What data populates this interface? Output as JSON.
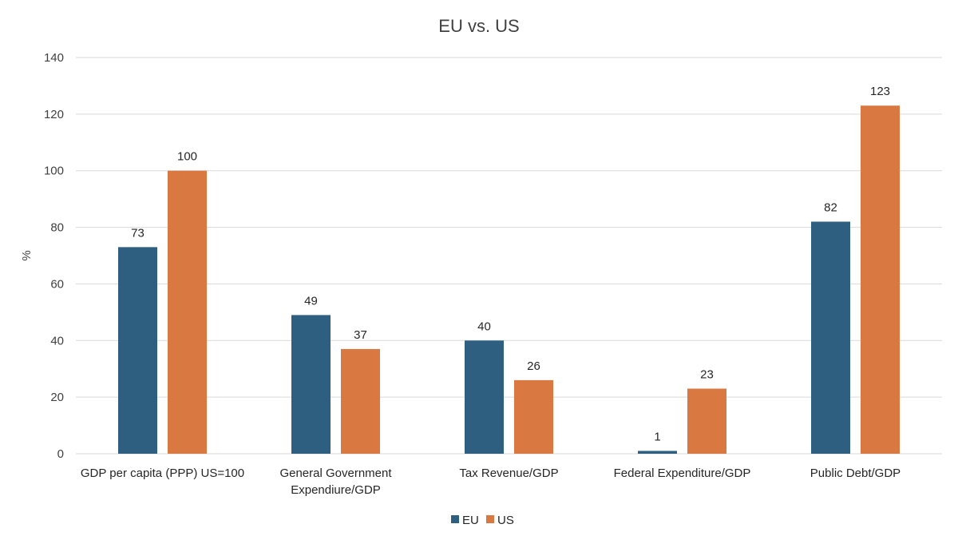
{
  "chart_data": {
    "type": "bar",
    "title": "EU vs. US",
    "xlabel": "",
    "ylabel": "%",
    "ylim": [
      0,
      140
    ],
    "yticks": [
      0,
      20,
      40,
      60,
      80,
      100,
      120,
      140
    ],
    "categories": [
      [
        "GDP per capita (PPP) US=100"
      ],
      [
        "General Government",
        "Expendiure/GDP"
      ],
      [
        "Tax Revenue/GDP"
      ],
      [
        "Federal Expenditure/GDP"
      ],
      [
        "Public Debt/GDP"
      ]
    ],
    "series": [
      {
        "name": "EU",
        "color": "#2e5f80",
        "values": [
          73,
          49,
          40,
          1,
          82
        ]
      },
      {
        "name": "US",
        "color": "#d97841",
        "values": [
          100,
          37,
          26,
          23,
          123
        ]
      }
    ],
    "grid": true,
    "legend": "bottom-center"
  }
}
